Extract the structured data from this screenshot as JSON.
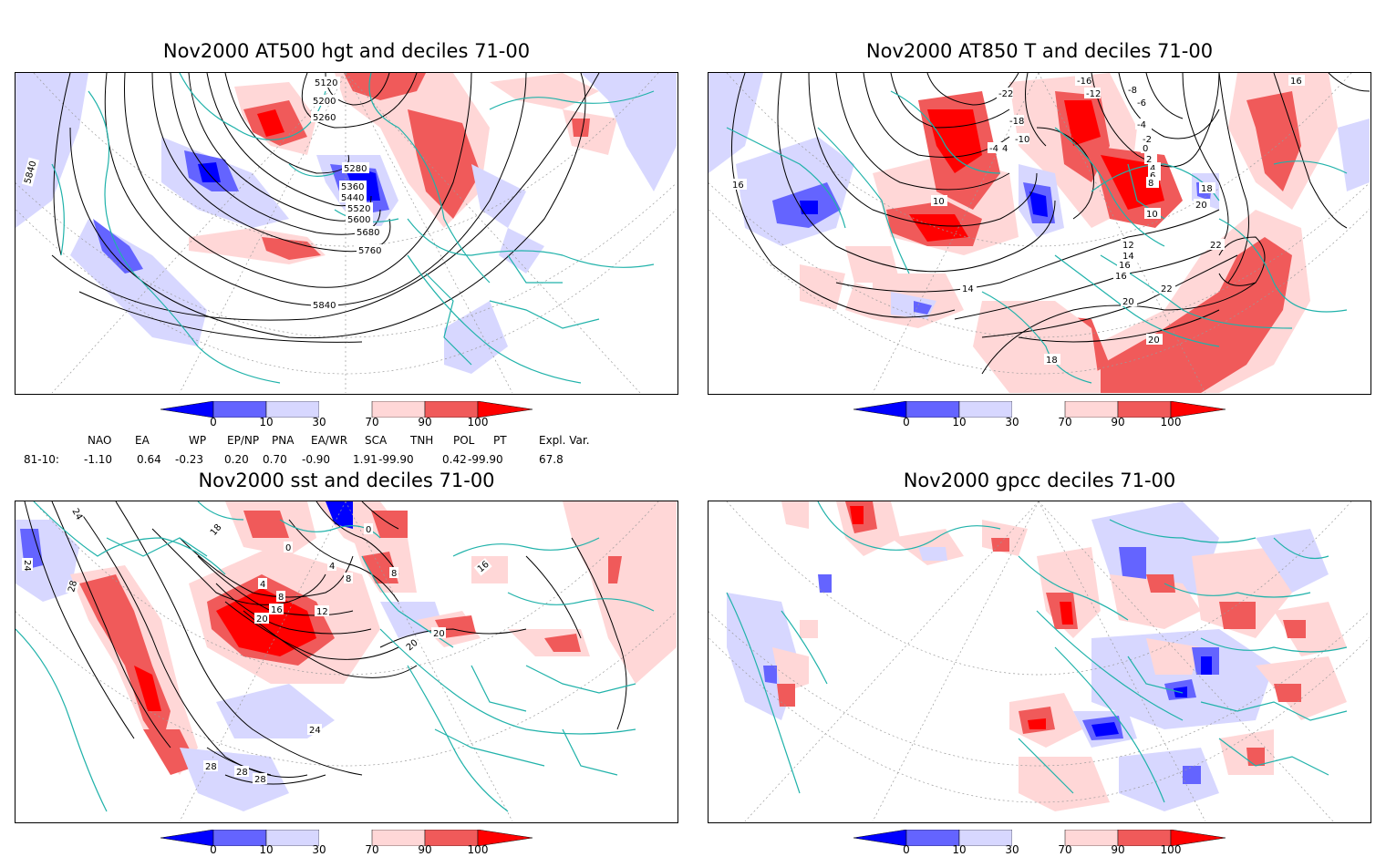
{
  "panels": [
    {
      "id": "hgt500",
      "title": "Nov2000 AT500 hgt and deciles 71-00",
      "contour_labels": [
        "5120",
        "5200",
        "5260",
        "5280",
        "5360",
        "5440",
        "5520",
        "5600",
        "5680",
        "5760",
        "5840",
        "5840"
      ]
    },
    {
      "id": "t850",
      "title": "Nov2000 AT850 T and deciles 71-00",
      "contour_labels": [
        "-22",
        "-16",
        "-12",
        "-8",
        "-6",
        "-4",
        "-2",
        "0",
        "2",
        "4",
        "6",
        "8",
        "10",
        "10",
        "12",
        "14",
        "14",
        "16",
        "16",
        "16",
        "18",
        "18",
        "20",
        "20",
        "20",
        "22",
        "22",
        "-18",
        "-10",
        "-4",
        "4",
        "16"
      ]
    },
    {
      "id": "sst",
      "title": "Nov2000 sst and deciles 71-00",
      "contour_labels": [
        "24",
        "24",
        "28",
        "28",
        "28",
        "28",
        "4",
        "8",
        "12",
        "16",
        "20",
        "20",
        "20",
        "0",
        "0",
        "4",
        "8",
        "8",
        "16",
        "18",
        "24"
      ]
    },
    {
      "id": "gpcc",
      "title": "Nov2000 gpcc deciles 71-00",
      "contour_labels": []
    }
  ],
  "colorbar": {
    "ticks": [
      "0",
      "10",
      "30",
      "70",
      "90",
      "100"
    ],
    "colors": {
      "dark_blue": "#0000ff",
      "mid_blue": "#6464ff",
      "light_blue": "#d7d7ff",
      "white": "#ffffff",
      "light_red": "#ffd7d7",
      "mid_red": "#f05a5a",
      "dark_red": "#ff0000"
    }
  },
  "indices": {
    "row_label": "81-10:",
    "headers": [
      "NAO",
      "EA",
      "WP",
      "EP/NP",
      "PNA",
      "EA/WR",
      "SCA",
      "TNH",
      "POL",
      "PT",
      "Expl. Var."
    ],
    "values": [
      "-1.10",
      "0.64",
      "-0.23",
      "0.20",
      "0.70",
      "-0.90",
      "1.91",
      "-99.90",
      "0.42",
      "-99.90",
      "67.8"
    ]
  },
  "style": {
    "coast_color": "#20b2aa",
    "contour_color": "#000000",
    "grid_color": "#9a9a9a"
  }
}
